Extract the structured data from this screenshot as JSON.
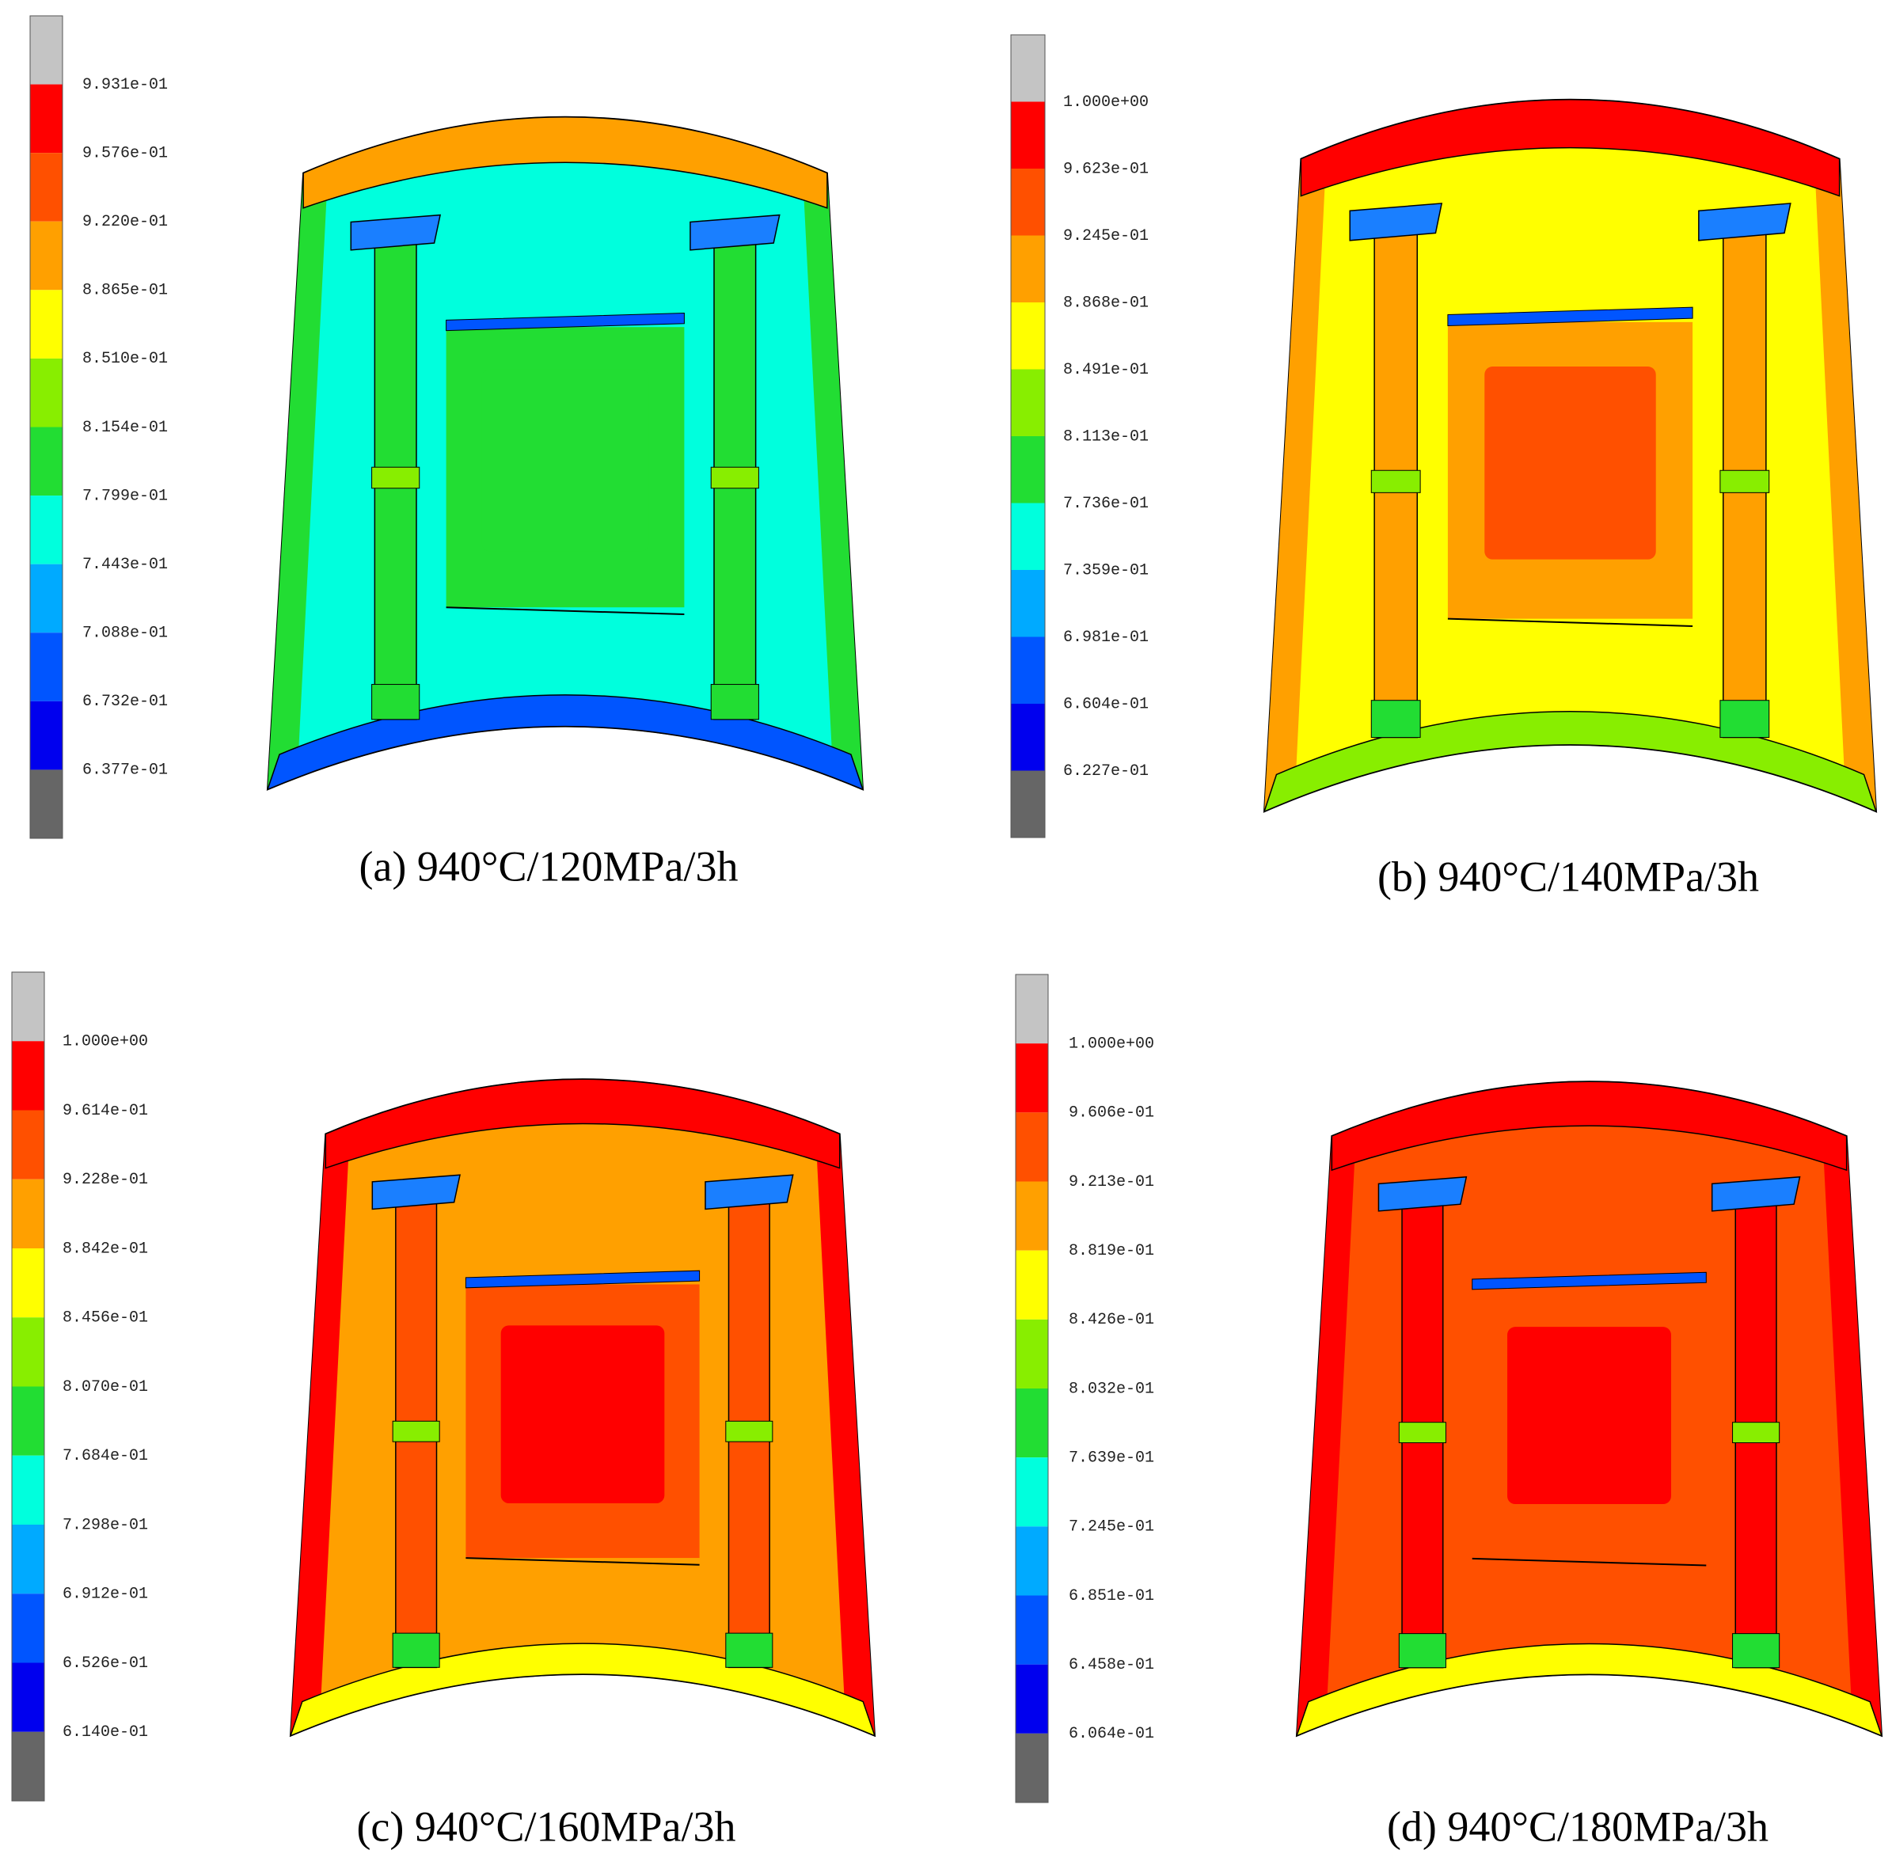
{
  "panels": [
    {
      "caption": "(a) 940°C/120MPa/3h",
      "legend_labels": [
        "9.931e-01",
        "9.576e-01",
        "9.220e-01",
        "8.865e-01",
        "8.510e-01",
        "8.154e-01",
        "7.799e-01",
        "7.443e-01",
        "7.088e-01",
        "6.732e-01",
        "6.377e-01"
      ]
    },
    {
      "caption": "(b) 940°C/140MPa/3h",
      "legend_labels": [
        "1.000e+00",
        "9.623e-01",
        "9.245e-01",
        "8.868e-01",
        "8.491e-01",
        "8.113e-01",
        "7.736e-01",
        "7.359e-01",
        "6.981e-01",
        "6.604e-01",
        "6.227e-01"
      ]
    },
    {
      "caption": "(c) 940°C/160MPa/3h",
      "legend_labels": [
        "1.000e+00",
        "9.614e-01",
        "9.228e-01",
        "8.842e-01",
        "8.456e-01",
        "8.070e-01",
        "7.684e-01",
        "7.298e-01",
        "6.912e-01",
        "6.526e-01",
        "6.140e-01"
      ]
    },
    {
      "caption": "(d) 940°C/180MPa/3h",
      "legend_labels": [
        "1.000e+00",
        "9.606e-01",
        "9.213e-01",
        "8.819e-01",
        "8.426e-01",
        "8.032e-01",
        "7.639e-01",
        "7.245e-01",
        "6.851e-01",
        "6.458e-01",
        "6.064e-01"
      ]
    }
  ]
}
